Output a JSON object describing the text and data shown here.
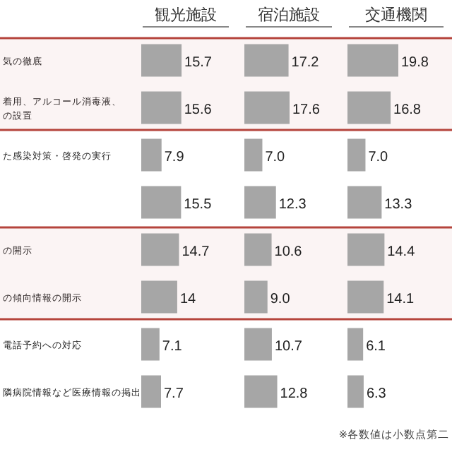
{
  "chart_data": [
    {
      "type": "bar",
      "orientation": "horizontal",
      "title": "観光施設",
      "categories": [
        "気の徹底",
        "着用、アルコール消毒液、の設置",
        "た感染対策・啓発の実行",
        null,
        "の開示",
        "の傾向情報の開示",
        "電話予約への対応",
        "隣病院情報など医療情報の掲出"
      ],
      "values": [
        15.7,
        15.6,
        7.9,
        15.5,
        14.7,
        14,
        7.1,
        7.7
      ],
      "value_labels": [
        "15.7",
        "15.6",
        "7.9",
        "15.5",
        "14.7",
        "14",
        "7.1",
        "7.7"
      ],
      "color": "#a6a6a6",
      "tick_labels": "y",
      "bands": [
        {
          "axis": "y",
          "from": "気の徹底",
          "to": "着用、アルコール消毒液、の設置",
          "color": "#b5443c"
        },
        {
          "axis": "y",
          "from": "の開示",
          "to": "の傾向情報の開示",
          "color": "#b5443c"
        }
      ]
    },
    {
      "type": "bar",
      "orientation": "horizontal",
      "title": "宿泊施設",
      "categories": [
        null,
        null,
        null,
        null,
        null,
        null,
        null,
        null
      ],
      "values": [
        17.2,
        17.6,
        7.0,
        12.3,
        10.6,
        9.0,
        10.7,
        12.8
      ],
      "value_labels": [
        "17.2",
        "17.6",
        "7.0",
        "12.3",
        "10.6",
        "9.0",
        "10.7",
        "12.8"
      ],
      "color": "#a6a6a6",
      "tick_labels": false
    },
    {
      "type": "bar",
      "orientation": "horizontal",
      "title": "交通機関",
      "categories": [
        null,
        null,
        null,
        null,
        null,
        null,
        null,
        null
      ],
      "values": [
        19.8,
        16.8,
        7.0,
        13.3,
        14.4,
        14.1,
        6.1,
        6.3
      ],
      "value_labels": [
        "19.8",
        "16.8",
        "7.0",
        "13.3",
        "14.4",
        "14.1",
        "6.1",
        "6.3"
      ],
      "color": "#a6a6a6",
      "tick_labels": false,
      "annotations": [
        "※各数値は小数点第二"
      ]
    }
  ]
}
